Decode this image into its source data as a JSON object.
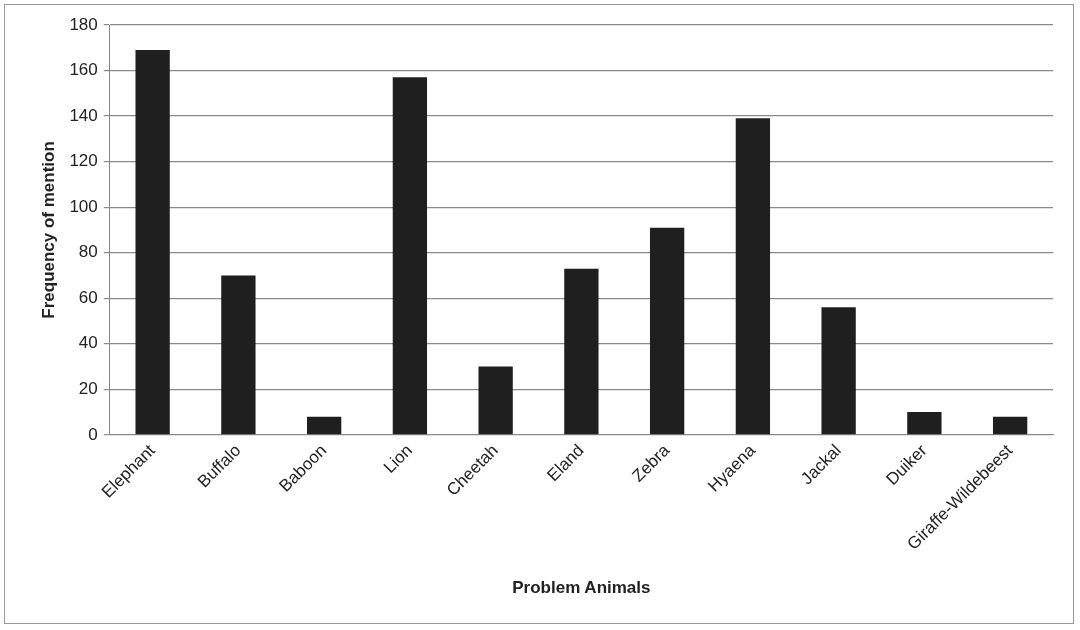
{
  "chart_data": {
    "type": "bar",
    "xlabel": "Problem Animals",
    "ylabel": "Frequency of mention",
    "categories": [
      "Elephant",
      "Buffalo",
      "Baboon",
      "Lion",
      "Cheetah",
      "Eland",
      "Zebra",
      "Hyaena",
      "Jackal",
      "Duiker",
      "Giraffe-Wildebeest"
    ],
    "values": [
      169,
      70,
      8,
      157,
      30,
      73,
      91,
      139,
      56,
      10,
      8
    ],
    "color": "#1f1f1f",
    "ylim": [
      0,
      180
    ],
    "yticks": [
      0,
      20,
      40,
      60,
      80,
      100,
      120,
      140,
      160,
      180
    ],
    "grid": "y"
  }
}
